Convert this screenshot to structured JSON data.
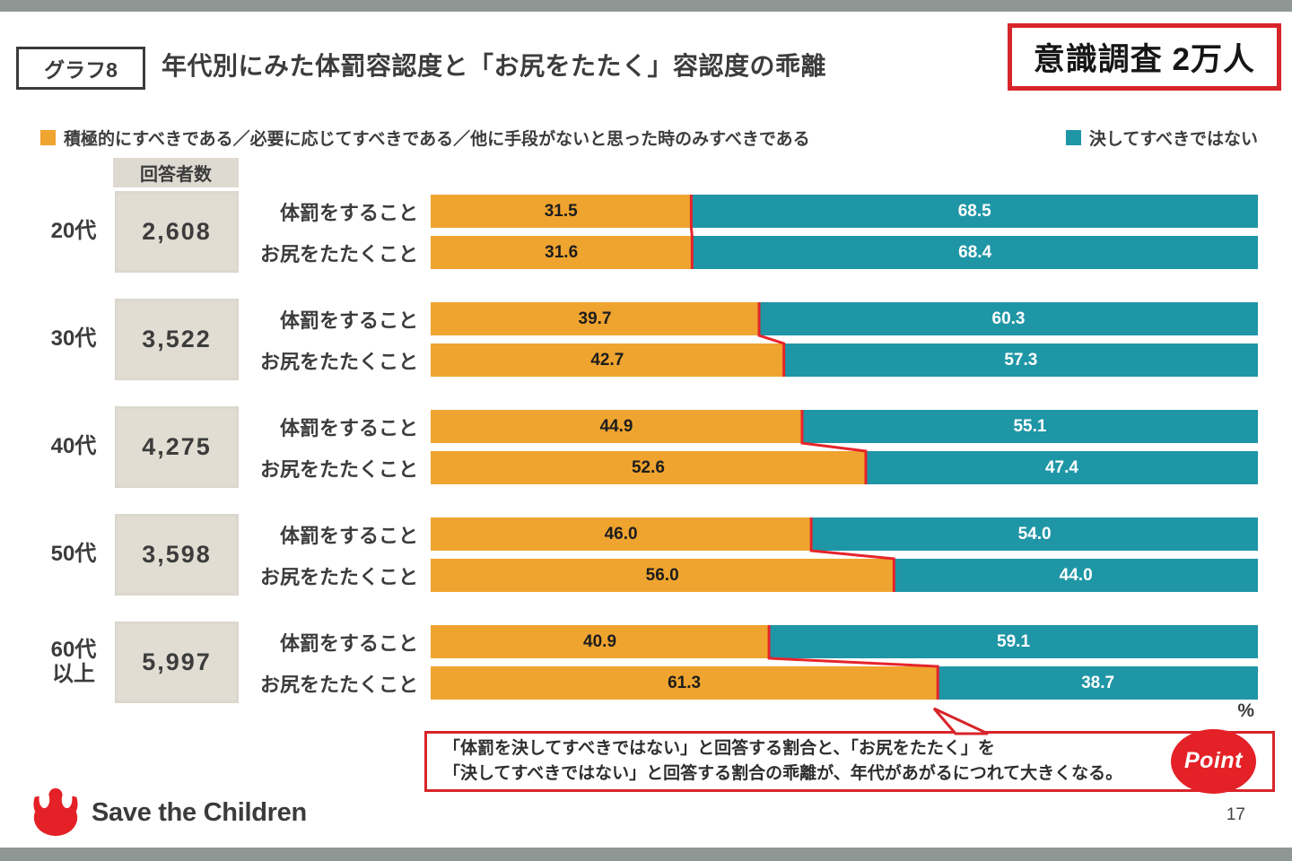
{
  "header": {
    "tag": "グラフ8",
    "title": "年代別にみた体罰容認度と「お尻をたたく」容認度の乖離",
    "badge": "意識調査 2万人"
  },
  "chart_data": {
    "type": "bar",
    "variant": "stacked-horizontal-paired",
    "unit": "%",
    "xlim": [
      0,
      100
    ],
    "respondents_header": "回答者数",
    "legend": [
      {
        "label": "積極的にすべきである／必要に応じてすべきである／他に手段がないと思った時のみすべきである",
        "color": "#EFA42F",
        "position": "top-left"
      },
      {
        "label": "決してすべきではない",
        "color": "#1F96A6",
        "position": "top-right"
      }
    ],
    "groups": [
      {
        "age": "20代",
        "respondents": "2,608",
        "rows": [
          {
            "label": "体罰をすること",
            "acceptable": 31.5,
            "never": 68.5
          },
          {
            "label": "お尻をたたくこと",
            "acceptable": 31.6,
            "never": 68.4
          }
        ]
      },
      {
        "age": "30代",
        "respondents": "3,522",
        "rows": [
          {
            "label": "体罰をすること",
            "acceptable": 39.7,
            "never": 60.3
          },
          {
            "label": "お尻をたたくこと",
            "acceptable": 42.7,
            "never": 57.3
          }
        ]
      },
      {
        "age": "40代",
        "respondents": "4,275",
        "rows": [
          {
            "label": "体罰をすること",
            "acceptable": 44.9,
            "never": 55.1
          },
          {
            "label": "お尻をたたくこと",
            "acceptable": 52.6,
            "never": 47.4
          }
        ]
      },
      {
        "age": "50代",
        "respondents": "3,598",
        "rows": [
          {
            "label": "体罰をすること",
            "acceptable": 46.0,
            "never": 54.0
          },
          {
            "label": "お尻をたたくこと",
            "acceptable": 56.0,
            "never": 44.0
          }
        ]
      },
      {
        "age": "60代\n以上",
        "respondents": "5,997",
        "rows": [
          {
            "label": "体罰をすること",
            "acceptable": 40.9,
            "never": 59.1
          },
          {
            "label": "お尻をたたくこと",
            "acceptable": 61.3,
            "never": 38.7
          }
        ]
      }
    ]
  },
  "point_box": {
    "line1": "「体罰を決してすべきではない」と回答する割合と、「お尻をたたく」を",
    "line2": "「決してすべきではない」と回答する割合の乖離が、年代があがるにつれて大きくなる。",
    "badge": "Point"
  },
  "footer": {
    "logo_text": "Save the Children",
    "page_number": "17"
  },
  "colors": {
    "orange": "#EFA42F",
    "teal": "#1F96A6",
    "red": "#D7252A",
    "count-bg": "#E1DDD3",
    "text": "#3C3C3C",
    "strip": "#8F9794"
  }
}
